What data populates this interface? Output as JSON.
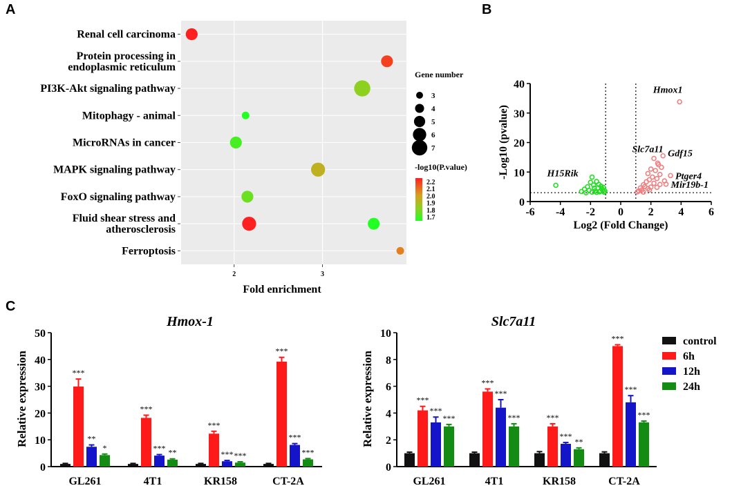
{
  "panel_labels": {
    "a": "A",
    "b": "B",
    "c": "C"
  },
  "colors": {
    "enrich_bg": "#ebebeb",
    "up": "#f08080",
    "down": "#22dd22",
    "control": "#111111",
    "h6": "#ff1a1a",
    "h12": "#1414c8",
    "h24": "#148c14"
  },
  "chart_data": [
    {
      "id": "enrichment",
      "type": "scatter",
      "title": "",
      "xlabel": "Fold enrichment",
      "ylabel": "",
      "xlim": [
        1.4,
        3.95
      ],
      "xticks": [
        2,
        3
      ],
      "tick_labels": [
        "2",
        "3"
      ],
      "categories": [
        "Renal cell carcinoma",
        "Protein processing in endoplasmic reticulum",
        "PI3K-Akt signaling pathway",
        "Mitophagy - animal",
        "MicroRNAs in cancer",
        "MAPK signaling pathway",
        "FoxO signaling pathway",
        "Fluid shear stress and atherosclerosis",
        "Ferroptosis"
      ],
      "category_lines": [
        [
          "Renal cell carcinoma"
        ],
        [
          "Protein processing in",
          "endoplasmic reticulum"
        ],
        [
          "PI3K-Akt signaling pathway"
        ],
        [
          "Mitophagy - animal"
        ],
        [
          "MicroRNAs in cancer"
        ],
        [
          "MAPK signaling pathway"
        ],
        [
          "FoxO signaling pathway"
        ],
        [
          "Fluid shear stress and",
          "atherosclerosis"
        ],
        [
          "Ferroptosis"
        ]
      ],
      "points": [
        {
          "category": 0,
          "x": 1.52,
          "size": 5,
          "color": 2.25
        },
        {
          "category": 1,
          "x": 3.73,
          "size": 5,
          "color": 2.15
        },
        {
          "category": 2,
          "x": 3.45,
          "size": 7,
          "color": 1.85
        },
        {
          "category": 3,
          "x": 2.13,
          "size": 3,
          "color": 1.7
        },
        {
          "category": 4,
          "x": 2.02,
          "size": 5,
          "color": 1.75
        },
        {
          "category": 5,
          "x": 2.95,
          "size": 6,
          "color": 1.95
        },
        {
          "category": 6,
          "x": 2.15,
          "size": 5,
          "color": 1.8
        },
        {
          "category": 7,
          "x": 2.17,
          "size": 6,
          "color": 2.25
        },
        {
          "category": 7,
          "x": 3.58,
          "size": 5,
          "color": 1.7
        },
        {
          "category": 8,
          "x": 3.88,
          "size": 3,
          "color": 2.05
        }
      ],
      "size_legend": {
        "title": "Gene number",
        "values": [
          3,
          4,
          5,
          6,
          7
        ]
      },
      "color_legend": {
        "title": "-log10(P.value)",
        "ticks": [
          "2.2",
          "2.1",
          "2.0",
          "1.9",
          "1.8",
          "1.7"
        ],
        "min": 1.7,
        "max": 2.2
      }
    },
    {
      "id": "volcano",
      "type": "scatter",
      "xlabel": "Log2 (Fold Change)",
      "ylabel": "-Log10 (pvalue)",
      "xlim": [
        -6,
        6
      ],
      "ylim": [
        0,
        40
      ],
      "xticks": [
        -6,
        -4,
        -2,
        0,
        2,
        4,
        6
      ],
      "yticks": [
        0,
        10,
        20,
        30,
        40
      ],
      "thresholds": {
        "x": [
          -1,
          1
        ],
        "y": 3
      },
      "down_points": [
        [
          -4.3,
          5.5
        ],
        [
          -2.4,
          4.2
        ],
        [
          -2.2,
          5.0
        ],
        [
          -2.0,
          6.5
        ],
        [
          -1.9,
          8.3
        ],
        [
          -1.8,
          5.6
        ],
        [
          -1.7,
          3.6
        ],
        [
          -1.6,
          6.8
        ],
        [
          -1.5,
          4.6
        ],
        [
          -1.4,
          3.3
        ],
        [
          -1.3,
          5.2
        ],
        [
          -1.2,
          3.9
        ],
        [
          -1.1,
          3.2
        ],
        [
          -2.6,
          3.4
        ],
        [
          -2.1,
          3.8
        ],
        [
          -1.75,
          4.5
        ],
        [
          -1.45,
          5.8
        ],
        [
          -1.25,
          4.4
        ],
        [
          -1.05,
          3.6
        ],
        [
          -1.9,
          3.2
        ],
        [
          -2.3,
          3.0
        ],
        [
          -1.6,
          3.1
        ],
        [
          -1.35,
          3.6
        ],
        [
          -1.15,
          4.8
        ]
      ],
      "up_points": [
        [
          3.9,
          33.8
        ],
        [
          2.8,
          15.5
        ],
        [
          2.2,
          14.6
        ],
        [
          2.5,
          12.5
        ],
        [
          2.0,
          11.0
        ],
        [
          2.3,
          10.5
        ],
        [
          1.8,
          9.5
        ],
        [
          3.3,
          8.8
        ],
        [
          2.6,
          9.2
        ],
        [
          2.1,
          8.3
        ],
        [
          1.9,
          7.4
        ],
        [
          2.4,
          7.8
        ],
        [
          2.9,
          7.0
        ],
        [
          1.7,
          6.7
        ],
        [
          3.0,
          5.9
        ],
        [
          2.2,
          6.2
        ],
        [
          1.5,
          5.7
        ],
        [
          2.6,
          5.8
        ],
        [
          1.6,
          5.1
        ],
        [
          2.0,
          4.9
        ],
        [
          1.3,
          4.6
        ],
        [
          1.8,
          4.4
        ],
        [
          2.4,
          4.8
        ],
        [
          1.4,
          3.9
        ],
        [
          1.2,
          3.6
        ],
        [
          1.1,
          3.3
        ],
        [
          1.9,
          3.9
        ],
        [
          1.5,
          3.2
        ],
        [
          2.7,
          11.6
        ],
        [
          2.45,
          13.0
        ]
      ],
      "annotations": [
        {
          "label": "Hmox1",
          "x": 3.9,
          "y": 33.8,
          "side": "above"
        },
        {
          "label": "Slc7a11",
          "x": 2.2,
          "y": 14.6,
          "side": "above"
        },
        {
          "label": "Gdf15",
          "x": 2.8,
          "y": 15.5,
          "side": "right"
        },
        {
          "label": "Ptger4",
          "x": 3.3,
          "y": 8.8,
          "side": "right"
        },
        {
          "label": "Mir19b-1",
          "x": 3.0,
          "y": 5.9,
          "side": "right"
        },
        {
          "label": "H15Rik",
          "x": -4.3,
          "y": 5.5,
          "side": "above"
        }
      ]
    },
    {
      "id": "hmox1",
      "type": "bar",
      "title": "Hmox-1",
      "ylabel": "Relative expression",
      "ylim": [
        0,
        50
      ],
      "yticks": [
        0,
        10,
        20,
        30,
        40,
        50
      ],
      "categories": [
        "GL261",
        "4T1",
        "KR158",
        "CT-2A"
      ],
      "series": [
        {
          "name": "control",
          "values": [
            1.0,
            1.0,
            1.0,
            1.0
          ],
          "errors": [
            0.2,
            0.2,
            0.2,
            0.2
          ],
          "sig": [
            "",
            "",
            "",
            ""
          ]
        },
        {
          "name": "6h",
          "values": [
            29.9,
            18.2,
            12.3,
            39.2
          ],
          "errors": [
            2.8,
            1.0,
            0.9,
            1.6
          ],
          "sig": [
            "***",
            "***",
            "***",
            "***"
          ]
        },
        {
          "name": "12h",
          "values": [
            7.4,
            4.1,
            2.0,
            8.1
          ],
          "errors": [
            0.7,
            0.4,
            0.3,
            0.5
          ],
          "sig": [
            "**",
            "***",
            "***",
            "***"
          ]
        },
        {
          "name": "24h",
          "values": [
            4.3,
            2.6,
            1.5,
            2.7
          ],
          "errors": [
            0.4,
            0.3,
            0.3,
            0.3
          ],
          "sig": [
            "*",
            "**",
            "***",
            "***"
          ]
        }
      ]
    },
    {
      "id": "slc7a11",
      "type": "bar",
      "title": "Slc7a11",
      "ylabel": "Relative expression",
      "ylim": [
        0,
        10
      ],
      "yticks": [
        0,
        2,
        4,
        6,
        8,
        10
      ],
      "categories": [
        "GL261",
        "4T1",
        "KR158",
        "CT-2A"
      ],
      "series": [
        {
          "name": "control",
          "values": [
            1.0,
            1.0,
            1.0,
            1.0
          ],
          "errors": [
            0.08,
            0.08,
            0.12,
            0.1
          ],
          "sig": [
            "",
            "",
            "",
            ""
          ]
        },
        {
          "name": "6h",
          "values": [
            4.2,
            5.6,
            3.0,
            9.0
          ],
          "errors": [
            0.3,
            0.2,
            0.2,
            0.1
          ],
          "sig": [
            "***",
            "***",
            "***",
            "***"
          ]
        },
        {
          "name": "12h",
          "values": [
            3.3,
            4.4,
            1.7,
            4.8
          ],
          "errors": [
            0.4,
            0.6,
            0.1,
            0.5
          ],
          "sig": [
            "***",
            "***",
            "***",
            "***"
          ]
        },
        {
          "name": "24h",
          "values": [
            3.0,
            3.0,
            1.3,
            3.3
          ],
          "errors": [
            0.15,
            0.2,
            0.1,
            0.1
          ],
          "sig": [
            "***",
            "***",
            "**",
            "***"
          ]
        }
      ],
      "legend": [
        "control",
        "6h",
        "12h",
        "24h"
      ]
    }
  ]
}
